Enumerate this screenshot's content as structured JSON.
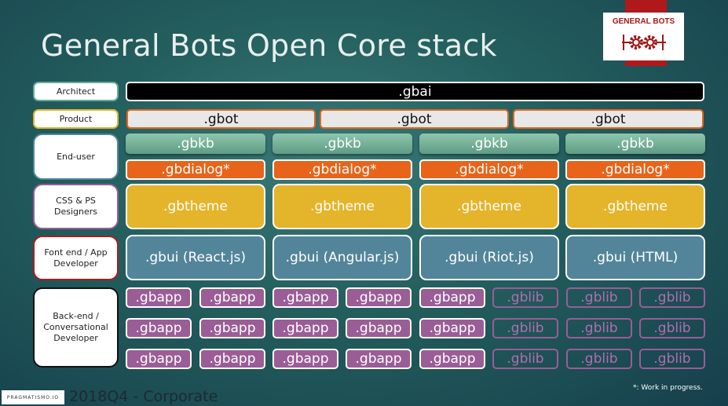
{
  "title": "General Bots Open Core stack",
  "logo_text": "GENERAL BOTS",
  "roles": [
    "Architect",
    "Product",
    "End-user",
    "CSS & PS\nDesigners",
    "Font end / App\nDeveloper",
    "Back-end  /\nConversational\nDeveloper"
  ],
  "architect": ".gbai",
  "product": [
    ".gbot",
    ".gbot",
    ".gbot"
  ],
  "enduser": {
    "kb": [
      ".gbkb",
      ".gbkb",
      ".gbkb",
      ".gbkb"
    ],
    "dialog": [
      ".gbdialog*",
      ".gbdialog*",
      ".gbdialog*",
      ".gbdialog*"
    ]
  },
  "themes": [
    ".gbtheme",
    ".gbtheme",
    ".gbtheme",
    ".gbtheme"
  ],
  "ui": [
    ".gbui (React.js)",
    ".gbui (Angular.js)",
    ".gbui (Riot.js)",
    ".gbui (HTML)"
  ],
  "backend": [
    [
      ".gbapp",
      ".gbapp",
      ".gbapp",
      ".gbapp",
      ".gbapp",
      ".gblib",
      ".gblib",
      ".gblib"
    ],
    [
      ".gbapp",
      ".gbapp",
      ".gbapp",
      ".gbapp",
      ".gbapp",
      ".gblib",
      ".gblib",
      ".gblib"
    ],
    [
      ".gbapp",
      ".gbapp",
      ".gbapp",
      ".gbapp",
      ".gbapp",
      ".gblib",
      ".gblib",
      ".gblib"
    ]
  ],
  "footer": {
    "brand": "PRAGMATISMO.IO",
    "text": "2018Q4 - Corporate",
    "note": "*: Work in progress."
  },
  "colors": {
    "gbkb": "#7fb89f",
    "gbdialog": "#e8641a",
    "gbtheme": "#e4b42a",
    "gbui": "#53859a",
    "gbapp": "#9a5d96",
    "logo": "#b0191b"
  }
}
